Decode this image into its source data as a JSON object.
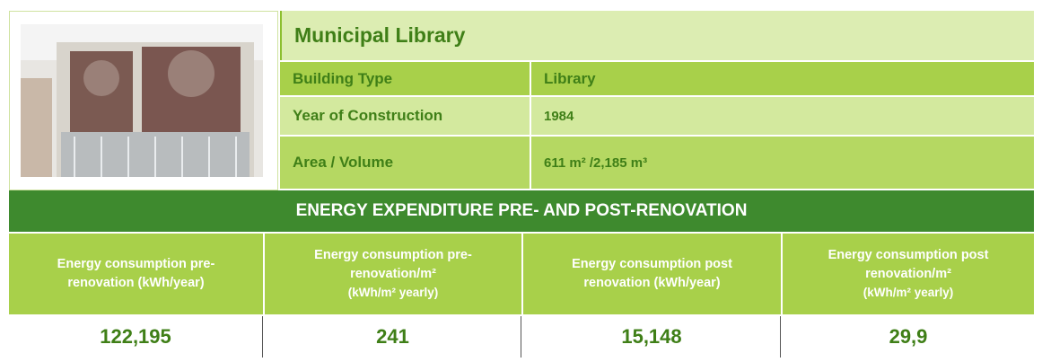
{
  "title": "Municipal Library",
  "details": [
    {
      "label": "Building Type",
      "value": "Library"
    },
    {
      "label": "Year of Construction",
      "value": "1984"
    },
    {
      "label": "Area / Volume",
      "value": "611 m² /2,185 m³"
    }
  ],
  "banner": "ENERGY EXPENDITURE PRE- AND POST-RENOVATION",
  "table": {
    "headers": [
      [
        "Energy consumption pre-renovation (kWh/year)"
      ],
      [
        "Energy consumption pre-renovation/m²",
        "(kWh/m² yearly)"
      ],
      [
        "Energy consumption  post renovation  (kWh/year)"
      ],
      [
        "Energy consumption post renovation/m²",
        "(kWh/m² yearly)"
      ]
    ],
    "values": [
      "122,195",
      "241",
      "15,148",
      "29,9"
    ]
  }
}
